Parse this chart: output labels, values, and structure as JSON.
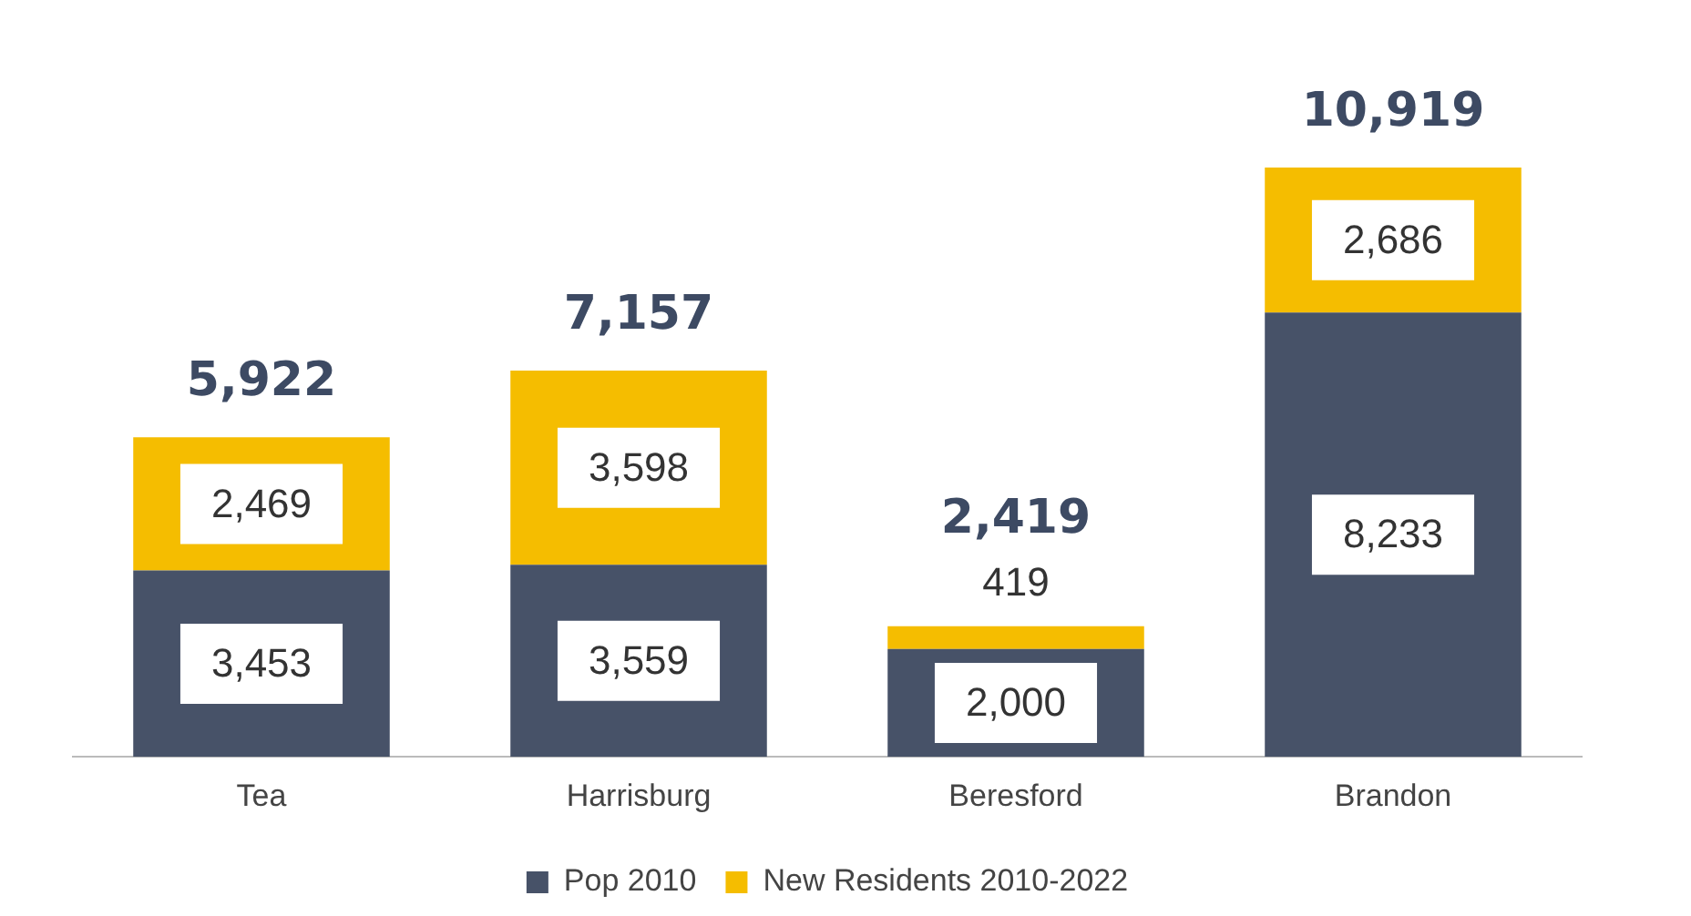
{
  "chart_data": {
    "type": "bar",
    "stacked": true,
    "categories": [
      "Tea",
      "Harrisburg",
      "Beresford",
      "Brandon"
    ],
    "series": [
      {
        "name": "Pop 2010",
        "color": "#475268",
        "values": [
          3453,
          3559,
          2000,
          8233
        ],
        "value_labels": [
          "3,453",
          "3,559",
          "2,000",
          "8,233"
        ]
      },
      {
        "name": "New Residents 2010-2022",
        "color": "#f5bd00",
        "values": [
          2469,
          3598,
          419,
          2686
        ],
        "value_labels": [
          "2,469",
          "3,598",
          "419",
          "2,686"
        ]
      }
    ],
    "totals": [
      "5,922",
      "7,157",
      "2,419",
      "10,919"
    ],
    "legend": "bottom",
    "grid": false,
    "tick_labels": "x"
  }
}
